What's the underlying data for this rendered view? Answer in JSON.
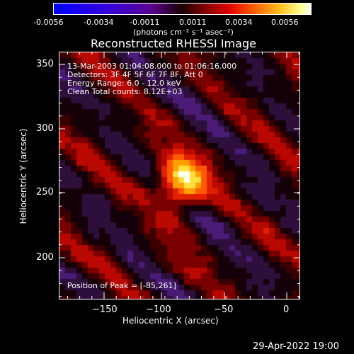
{
  "colorbar": {
    "ticks": [
      "-0.0056",
      "-0.0034",
      "-0.0011",
      "0.0011",
      "0.0034",
      "0.0056"
    ],
    "unit_label": "(photons cm⁻² s⁻¹ asec⁻²)",
    "colors": [
      "#0000ff",
      "#4400cc",
      "#5a0088",
      "#1a001a",
      "#4a0000",
      "#c00000",
      "#ff3000",
      "#ff9a00",
      "#ffee40",
      "#ffffff"
    ]
  },
  "title": "Reconstructed RHESSI Image",
  "info": {
    "time": "13-Mar-2003 01:04:08.000 to 01:06:16.000",
    "detectors": "Detectors: 3F 4F 5F 6F 7F 8F, Att 0",
    "energy": "Energy Range: 6.0 - 12.0 keV",
    "clean": "Clean     Total counts: 8.12E+03"
  },
  "peak": "Position of Peak = [-85,261]",
  "x_axis": {
    "label": "Heliocentric X (arcsec)",
    "ticks": [
      "−150",
      "−100",
      "−50",
      "0"
    ]
  },
  "y_axis": {
    "label": "Heliocentric Y (arcsec)",
    "ticks": [
      "350",
      "300",
      "250",
      "200"
    ]
  },
  "footer_date": "29-Apr-2022 19:00"
}
